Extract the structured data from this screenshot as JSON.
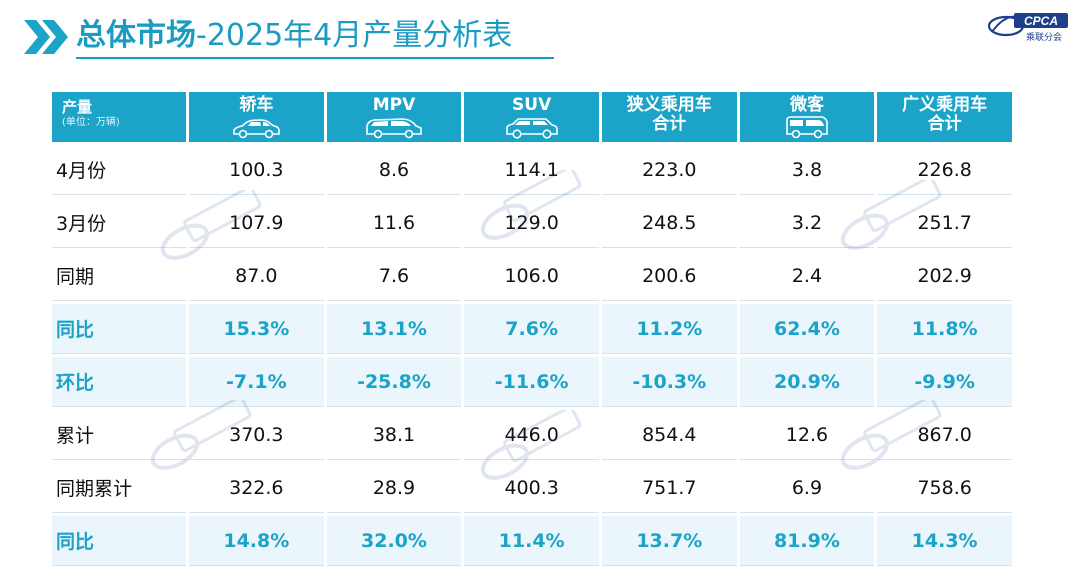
{
  "header": {
    "title_bold": "总体市场",
    "title_rest": "-2025年4月产量分析表"
  },
  "logo": {
    "text": "CPCA",
    "subtext": "乘联分会"
  },
  "table": {
    "corner": {
      "title": "产量",
      "unit": "(单位：万辆)"
    },
    "columns": [
      {
        "line1": "轿车",
        "line2": "",
        "icon": "sedan-icon"
      },
      {
        "line1": "MPV",
        "line2": "",
        "icon": "mpv-icon"
      },
      {
        "line1": "SUV",
        "line2": "",
        "icon": "suv-icon"
      },
      {
        "line1": "狭义乘用车",
        "line2": "合计",
        "icon": ""
      },
      {
        "line1": "微客",
        "line2": "",
        "icon": "minivan-icon"
      },
      {
        "line1": "广义乘用车",
        "line2": "合计",
        "icon": ""
      }
    ],
    "rows": [
      {
        "label": "4月份",
        "highlight": false,
        "values": [
          "100.3",
          "8.6",
          "114.1",
          "223.0",
          "3.8",
          "226.8"
        ]
      },
      {
        "label": "3月份",
        "highlight": false,
        "values": [
          "107.9",
          "11.6",
          "129.0",
          "248.5",
          "3.2",
          "251.7"
        ]
      },
      {
        "label": "同期",
        "highlight": false,
        "values": [
          "87.0",
          "7.6",
          "106.0",
          "200.6",
          "2.4",
          "202.9"
        ]
      },
      {
        "label": "同比",
        "highlight": true,
        "values": [
          "15.3%",
          "13.1%",
          "7.6%",
          "11.2%",
          "62.4%",
          "11.8%"
        ]
      },
      {
        "label": "环比",
        "highlight": true,
        "values": [
          "-7.1%",
          "-25.8%",
          "-11.6%",
          "-10.3%",
          "20.9%",
          "-9.9%"
        ]
      },
      {
        "label": "累计",
        "highlight": false,
        "values": [
          "370.3",
          "38.1",
          "446.0",
          "854.4",
          "12.6",
          "867.0"
        ]
      },
      {
        "label": "同期累计",
        "highlight": false,
        "values": [
          "322.6",
          "28.9",
          "400.3",
          "751.7",
          "6.9",
          "758.6"
        ]
      },
      {
        "label": "同比",
        "highlight": true,
        "values": [
          "14.8%",
          "32.0%",
          "11.4%",
          "13.7%",
          "81.9%",
          "14.3%"
        ]
      }
    ]
  },
  "colors": {
    "accent": "#1ba3c8",
    "highlight_bg": "#eaf6fb",
    "logo_blue": "#1d3f8c"
  }
}
